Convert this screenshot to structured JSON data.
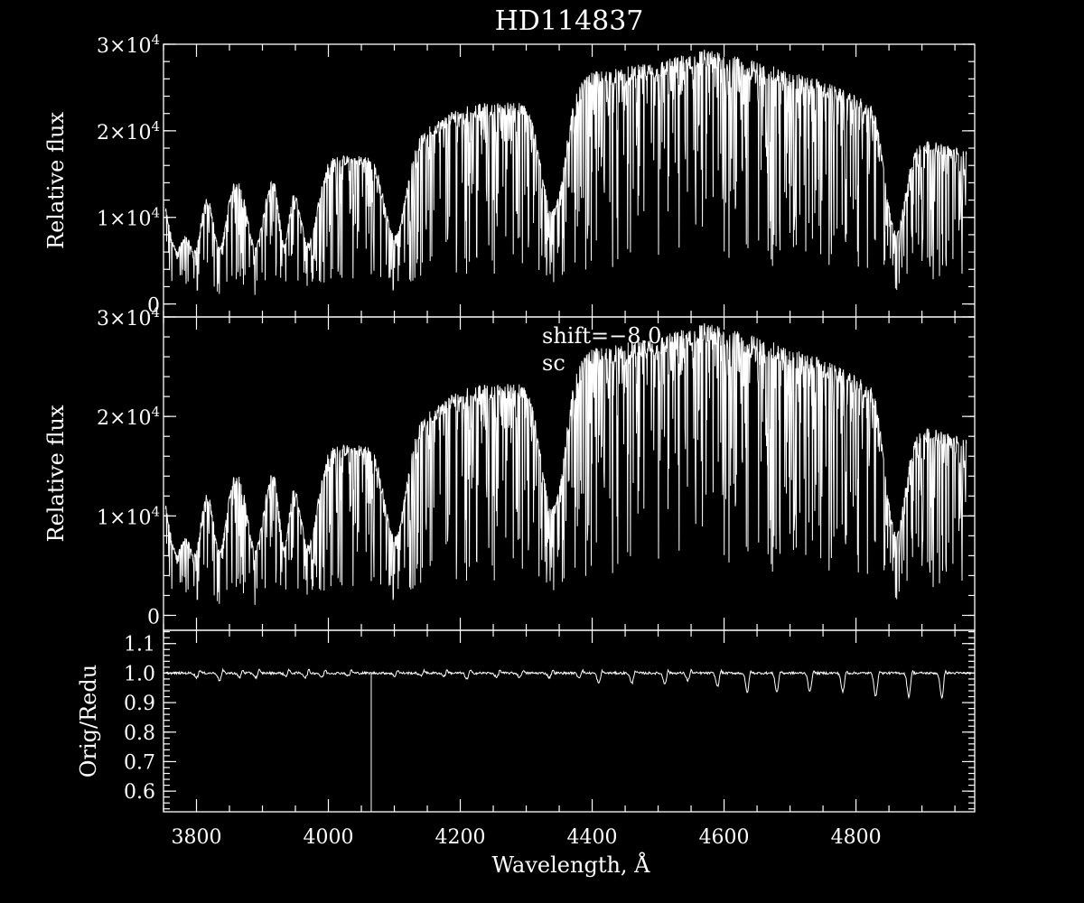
{
  "title": "HD114837",
  "colors": {
    "background": "#000000",
    "foreground": "#ffffff"
  },
  "chart_data": [
    {
      "type": "line",
      "panel": "top",
      "ylabel": "Relative flux",
      "xlim": [
        3750,
        4980
      ],
      "ylim": [
        -1500,
        30000
      ],
      "yticks": [
        {
          "value": 0,
          "mant": "0",
          "exp": ""
        },
        {
          "value": 10000,
          "mant": "1×10",
          "exp": "4"
        },
        {
          "value": 20000,
          "mant": "2×10",
          "exp": "4"
        },
        {
          "value": 30000,
          "mant": "3×10",
          "exp": "4"
        }
      ],
      "yminor": 2000,
      "continuum": [
        [
          3750,
          14500
        ],
        [
          3850,
          14800
        ],
        [
          3950,
          15500
        ],
        [
          4000,
          17000
        ],
        [
          4050,
          17300
        ],
        [
          4100,
          17800
        ],
        [
          4200,
          23000
        ],
        [
          4300,
          23500
        ],
        [
          4350,
          24500
        ],
        [
          4400,
          26800
        ],
        [
          4500,
          28000
        ],
        [
          4570,
          29500
        ],
        [
          4650,
          28000
        ],
        [
          4750,
          25800
        ],
        [
          4830,
          23000
        ],
        [
          4850,
          19000
        ],
        [
          4880,
          19500
        ],
        [
          4980,
          17500
        ]
      ],
      "line_series_note": null,
      "series": [
        {
          "values": "synthetic absorption spectrum"
        }
      ]
    },
    {
      "type": "line",
      "panel": "middle",
      "ylabel": "Relative flux",
      "xlim": [
        3750,
        4980
      ],
      "ylim": [
        -1500,
        30000
      ],
      "yticks": [
        {
          "value": 0,
          "mant": "0",
          "exp": ""
        },
        {
          "value": 10000,
          "mant": "1×10",
          "exp": "4"
        },
        {
          "value": 20000,
          "mant": "2×10",
          "exp": "4"
        },
        {
          "value": 30000,
          "mant": "3×10",
          "exp": "4"
        }
      ],
      "yminor": 2000,
      "annotations": [
        "shift=−8.0",
        "sc"
      ]
    },
    {
      "type": "line",
      "panel": "bottom",
      "ylabel": "Orig/Redu",
      "xlabel": "Wavelength, Å",
      "xlim": [
        3750,
        4980
      ],
      "ylim": [
        0.53,
        1.145
      ],
      "xticks": [
        3800,
        4000,
        4200,
        4400,
        4600,
        4800
      ],
      "xminor": 50,
      "yticks": [
        0.6,
        0.7,
        0.8,
        0.9,
        1.0,
        1.1
      ],
      "ytick_labels": [
        "0.6",
        "0.7",
        "0.8",
        "0.9",
        "1.0",
        "1.1"
      ],
      "yminor": 0.02,
      "baseline": 1.0,
      "spike": {
        "x": 4065,
        "y_min": 0.53
      }
    }
  ]
}
